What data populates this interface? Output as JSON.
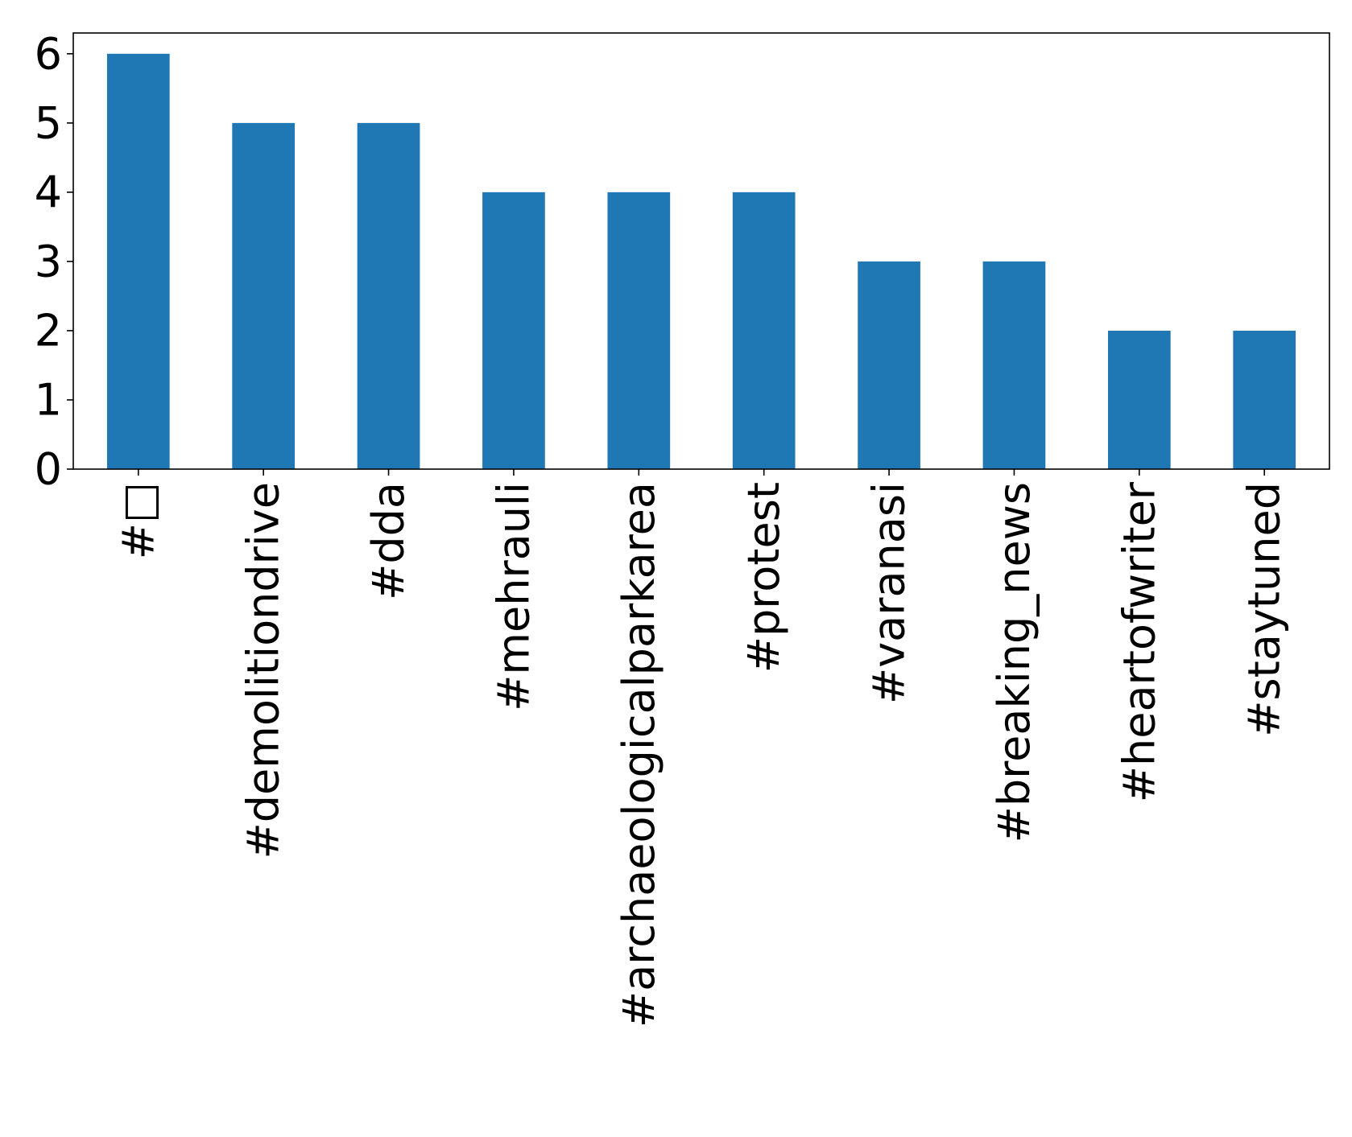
{
  "chart_data": {
    "type": "bar",
    "title": "",
    "xlabel": "",
    "ylabel": "",
    "categories": [
      "#□",
      "#demolitiondrive",
      "#dda",
      "#mehrauli",
      "#archaeologicalparkarea",
      "#protest",
      "#varanasi",
      "#breaking_news",
      "#heartofwriter",
      "#staytuned"
    ],
    "values": [
      6,
      5,
      5,
      4,
      4,
      4,
      3,
      3,
      2,
      2
    ],
    "ylim": [
      0,
      6.3
    ],
    "yticks": [
      "0",
      "1",
      "2",
      "3",
      "4",
      "5",
      "6"
    ],
    "grid": false,
    "legend": "none",
    "colors": {
      "bar": "#1f77b4",
      "axes": "#000000",
      "background": "#ffffff"
    }
  }
}
